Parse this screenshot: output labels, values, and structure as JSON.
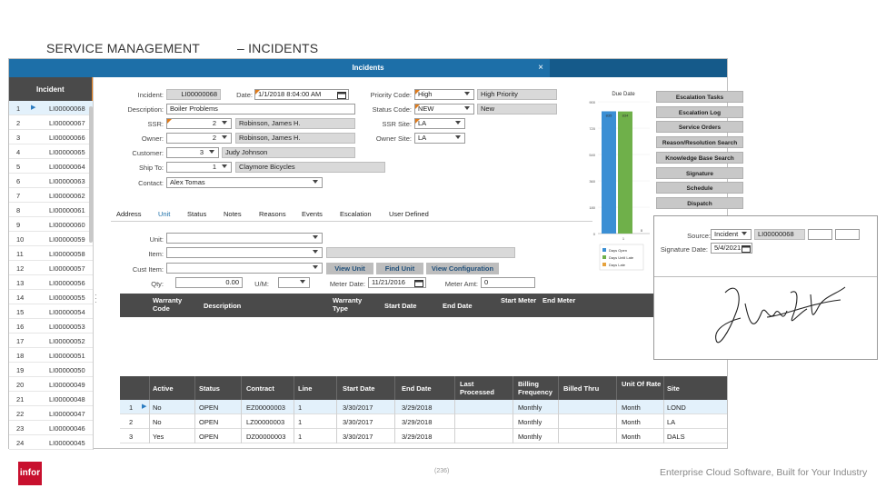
{
  "slide": {
    "title_left": "SERVICE MANAGEMENT",
    "title_right": "–  INCIDENTS"
  },
  "window": {
    "title": "Incidents",
    "close_glyph": "×"
  },
  "list": {
    "header": "Incident",
    "rows": [
      {
        "n": "1",
        "v": "LI00000068"
      },
      {
        "n": "2",
        "v": "LI00000067"
      },
      {
        "n": "3",
        "v": "LI00000066"
      },
      {
        "n": "4",
        "v": "LI00000065"
      },
      {
        "n": "5",
        "v": "LI00000064"
      },
      {
        "n": "6",
        "v": "LI00000063"
      },
      {
        "n": "7",
        "v": "LI00000062"
      },
      {
        "n": "8",
        "v": "LI00000061"
      },
      {
        "n": "9",
        "v": "LI00000060"
      },
      {
        "n": "10",
        "v": "LI00000059"
      },
      {
        "n": "11",
        "v": "LI00000058"
      },
      {
        "n": "12",
        "v": "LI00000057"
      },
      {
        "n": "13",
        "v": "LI00000056"
      },
      {
        "n": "14",
        "v": "LI00000055"
      },
      {
        "n": "15",
        "v": "LI00000054"
      },
      {
        "n": "16",
        "v": "LI00000053"
      },
      {
        "n": "17",
        "v": "LI00000052"
      },
      {
        "n": "18",
        "v": "LI00000051"
      },
      {
        "n": "19",
        "v": "LI00000050"
      },
      {
        "n": "20",
        "v": "LI00000049"
      },
      {
        "n": "21",
        "v": "LI00000048"
      },
      {
        "n": "22",
        "v": "LI00000047"
      },
      {
        "n": "23",
        "v": "LI00000046"
      },
      {
        "n": "24",
        "v": "LI00000045"
      }
    ]
  },
  "form": {
    "incident_label": "Incident:",
    "incident_value": "LI00000068",
    "date_label": "Date:",
    "date_value": "1/1/2018 8:04:00 AM",
    "priority_label": "Priority Code:",
    "priority_value": "High",
    "priority_desc": "High Priority",
    "description_label": "Description:",
    "description_value": "Boiler Problems",
    "status_label": "Status Code:",
    "status_value": "NEW",
    "status_desc": "New",
    "ssr_label": "SSR:",
    "ssr_value": "2",
    "ssr_name": "Robinson, James H.",
    "ssr_site_label": "SSR Site:",
    "ssr_site_value": "LA",
    "owner_label": "Owner:",
    "owner_value": "2",
    "owner_name": "Robinson, James H.",
    "owner_site_label": "Owner Site:",
    "owner_site_value": "LA",
    "customer_label": "Customer:",
    "customer_value": "3",
    "customer_name": "Judy Johnson",
    "shipto_label": "Ship To:",
    "shipto_value": "1",
    "shipto_name": "Claymore Bicycles",
    "contact_label": "Contact:",
    "contact_value": "Alex Tomas"
  },
  "tabs": [
    "Address",
    "Unit",
    "Status",
    "Notes",
    "Reasons",
    "Events",
    "Escalation",
    "User Defined"
  ],
  "unit": {
    "unit_label": "Unit:",
    "item_label": "Item:",
    "cust_item_label": "Cust Item:",
    "qty_label": "Qty:",
    "qty_value": "0.00",
    "um_label": "U/M:",
    "meter_date_label": "Meter Date:",
    "meter_date_value": "11/21/2016",
    "meter_amt_label": "Meter Amt:",
    "meter_amt_value": "0",
    "view_unit": "View Unit",
    "find_unit": "Find Unit",
    "view_config": "View Configuration"
  },
  "warranty_grid": {
    "headers": [
      "Warranty Code",
      "Description",
      "Warranty Type",
      "Start Date",
      "End Date",
      "Start Meter",
      "End Meter"
    ]
  },
  "contract_grid": {
    "headers": [
      "Active",
      "Status",
      "Contract",
      "Line",
      "Start Date",
      "End Date",
      "Last Processed",
      "Billing Frequency",
      "Billed Thru",
      "Unit Of Rate",
      "Site"
    ],
    "rows": [
      {
        "n": "1",
        "active": "No",
        "status": "OPEN",
        "contract": "EZ00000003",
        "line": "1",
        "start": "3/30/2017",
        "end": "3/29/2018",
        "last": "",
        "freq": "Monthly",
        "billed": "",
        "unit": "Month",
        "site": "LOND"
      },
      {
        "n": "2",
        "active": "No",
        "status": "OPEN",
        "contract": "LZ00000003",
        "line": "1",
        "start": "3/30/2017",
        "end": "3/29/2018",
        "last": "",
        "freq": "Monthly",
        "billed": "",
        "unit": "Month",
        "site": "LA"
      },
      {
        "n": "3",
        "active": "Yes",
        "status": "OPEN",
        "contract": "DZ00000003",
        "line": "1",
        "start": "3/30/2017",
        "end": "3/29/2018",
        "last": "",
        "freq": "Monthly",
        "billed": "",
        "unit": "Month",
        "site": "DALS"
      }
    ]
  },
  "chart_data": {
    "type": "bar",
    "title": "Due Date",
    "categories": [
      "1"
    ],
    "series": [
      {
        "name": "Days Open",
        "values": [
          835
        ],
        "color": "#3b8fd4"
      },
      {
        "name": "Days Until Late",
        "values": [
          834
        ],
        "color": "#6fb04a"
      },
      {
        "name": "Days Late",
        "values": [
          0
        ],
        "color": "#e6a23c"
      }
    ],
    "ylim": [
      0,
      900
    ],
    "yticks": [
      "0",
      "180",
      "360",
      "540",
      "720",
      "900"
    ],
    "data_labels": [
      "835",
      "834",
      "0"
    ]
  },
  "side_buttons": [
    "Escalation Tasks",
    "Escalation Log",
    "Service Orders",
    "Reason/Resolution Search",
    "Knowledge Base Search",
    "Signature",
    "Schedule",
    "Dispatch"
  ],
  "signature": {
    "source_label": "Source:",
    "source_value": "Incident",
    "source_id": "LI00000068",
    "date_label": "Signature Date:",
    "date_value": "5/4/2021"
  },
  "footer": {
    "logo": "infor",
    "page": "(236)",
    "tagline": "Enterprise Cloud Software, Built for Your Industry"
  },
  "colors": {
    "titlebar": "#1d6fa8",
    "accent": "#e07b1a",
    "infor_red": "#c8102e"
  }
}
